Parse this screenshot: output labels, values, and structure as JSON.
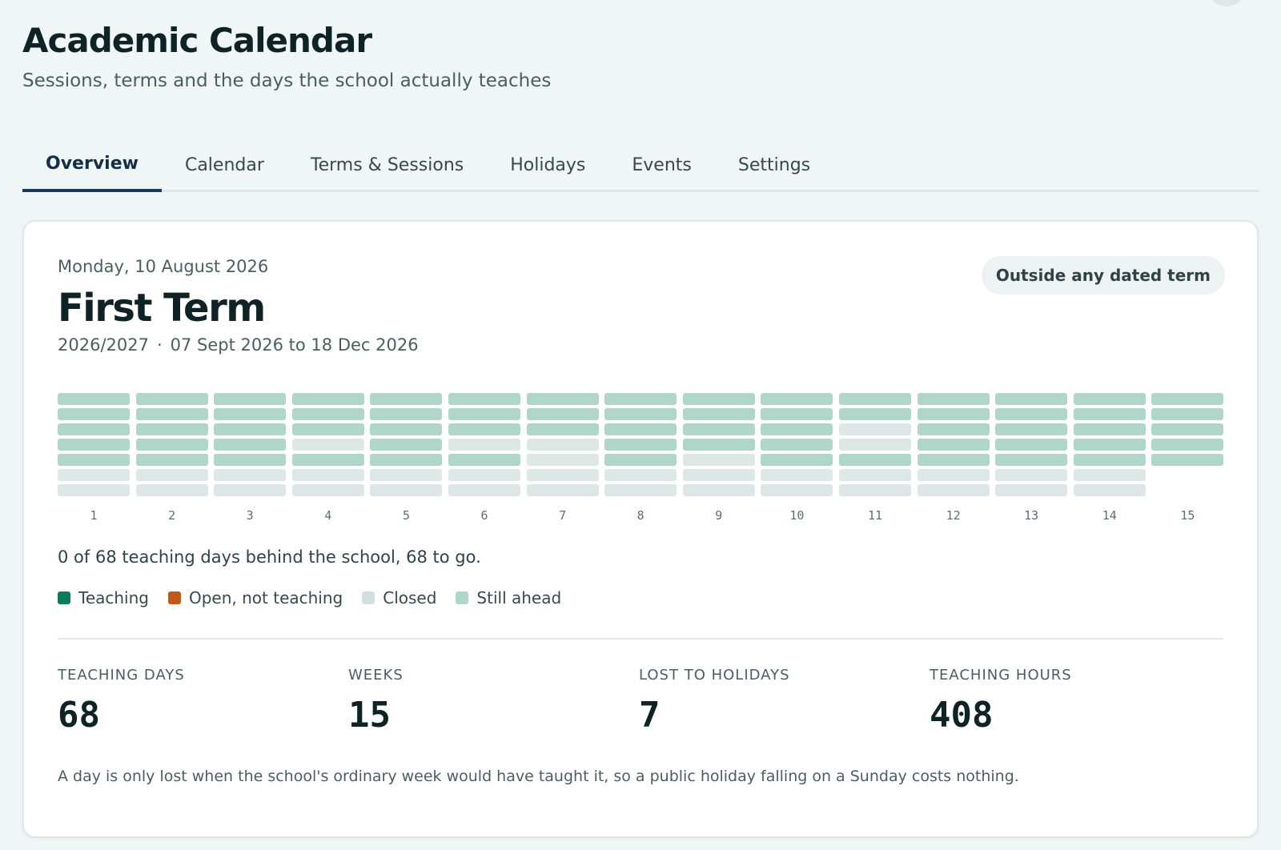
{
  "header": {
    "title": "Academic Calendar",
    "subtitle": "Sessions, terms and the days the school actually teaches"
  },
  "tabs": [
    {
      "label": "Overview",
      "active": true
    },
    {
      "label": "Calendar",
      "active": false
    },
    {
      "label": "Terms & Sessions",
      "active": false
    },
    {
      "label": "Holidays",
      "active": false
    },
    {
      "label": "Events",
      "active": false
    },
    {
      "label": "Settings",
      "active": false
    }
  ],
  "term_card": {
    "today": "Monday, 10 August 2026",
    "term_name": "First Term",
    "session": "2026/2027",
    "separator": "·",
    "date_range": "07 Sept 2026 to 18 Dec 2026",
    "status_badge": "Outside any dated term"
  },
  "week_strip": {
    "weeks": [
      {
        "label": "1",
        "days": [
          "ahead",
          "ahead",
          "ahead",
          "ahead",
          "ahead",
          "closed",
          "closed"
        ]
      },
      {
        "label": "2",
        "days": [
          "ahead",
          "ahead",
          "ahead",
          "ahead",
          "ahead",
          "closed",
          "closed"
        ]
      },
      {
        "label": "3",
        "days": [
          "ahead",
          "ahead",
          "ahead",
          "ahead",
          "ahead",
          "closed",
          "closed"
        ]
      },
      {
        "label": "4",
        "days": [
          "ahead",
          "ahead",
          "ahead",
          "closed",
          "ahead",
          "closed",
          "closed"
        ]
      },
      {
        "label": "5",
        "days": [
          "ahead",
          "ahead",
          "ahead",
          "ahead",
          "ahead",
          "closed",
          "closed"
        ]
      },
      {
        "label": "6",
        "days": [
          "ahead",
          "ahead",
          "ahead",
          "closed",
          "ahead",
          "closed",
          "closed"
        ]
      },
      {
        "label": "7",
        "days": [
          "ahead",
          "ahead",
          "ahead",
          "closed",
          "closed",
          "closed",
          "closed"
        ]
      },
      {
        "label": "8",
        "days": [
          "ahead",
          "ahead",
          "ahead",
          "ahead",
          "ahead",
          "closed",
          "closed"
        ]
      },
      {
        "label": "9",
        "days": [
          "ahead",
          "ahead",
          "ahead",
          "ahead",
          "closed",
          "closed",
          "closed"
        ]
      },
      {
        "label": "10",
        "days": [
          "ahead",
          "ahead",
          "ahead",
          "ahead",
          "ahead",
          "closed",
          "closed"
        ]
      },
      {
        "label": "11",
        "days": [
          "ahead",
          "ahead",
          "closed",
          "closed",
          "ahead",
          "closed",
          "closed"
        ]
      },
      {
        "label": "12",
        "days": [
          "ahead",
          "ahead",
          "ahead",
          "ahead",
          "ahead",
          "closed",
          "closed"
        ]
      },
      {
        "label": "13",
        "days": [
          "ahead",
          "ahead",
          "ahead",
          "ahead",
          "ahead",
          "closed",
          "closed"
        ]
      },
      {
        "label": "14",
        "days": [
          "ahead",
          "ahead",
          "ahead",
          "ahead",
          "ahead",
          "closed",
          "closed"
        ]
      },
      {
        "label": "15",
        "days": [
          "ahead",
          "ahead",
          "ahead",
          "ahead",
          "ahead"
        ]
      }
    ]
  },
  "progress_text": "0 of 68 teaching days behind the school, 68 to go.",
  "legend": [
    {
      "label": "Teaching",
      "color": "#0c7a5d"
    },
    {
      "label": "Open, not teaching",
      "color": "#c2571a"
    },
    {
      "label": "Closed",
      "color": "#d3dfde"
    },
    {
      "label": "Still ahead",
      "color": "#b0d6c9"
    }
  ],
  "stats": [
    {
      "label": "TEACHING DAYS",
      "value": "68"
    },
    {
      "label": "WEEKS",
      "value": "15"
    },
    {
      "label": "LOST TO HOLIDAYS",
      "value": "7"
    },
    {
      "label": "TEACHING HOURS",
      "value": "408"
    }
  ],
  "footnote": "A day is only lost when the school's ordinary week would have taught it, so a public holiday falling on a Sunday costs nothing."
}
